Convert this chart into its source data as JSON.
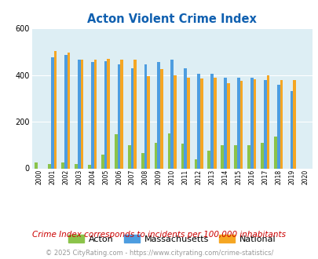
{
  "title": "Acton Violent Crime Index",
  "years": [
    2000,
    2001,
    2002,
    2003,
    2004,
    2005,
    2006,
    2007,
    2008,
    2009,
    2010,
    2011,
    2012,
    2013,
    2014,
    2015,
    2016,
    2017,
    2018,
    2019,
    2020
  ],
  "acton": [
    25,
    18,
    25,
    20,
    15,
    60,
    148,
    100,
    65,
    110,
    150,
    105,
    38,
    75,
    100,
    100,
    100,
    110,
    135,
    0,
    0
  ],
  "massachusetts": [
    0,
    478,
    488,
    468,
    455,
    458,
    445,
    430,
    445,
    455,
    465,
    430,
    405,
    405,
    390,
    390,
    390,
    378,
    358,
    330,
    0
  ],
  "national": [
    0,
    505,
    498,
    468,
    465,
    470,
    465,
    465,
    395,
    425,
    400,
    390,
    385,
    390,
    365,
    375,
    383,
    398,
    380,
    380,
    0
  ],
  "acton_color": "#8bc34a",
  "mass_color": "#4d9de0",
  "national_color": "#f5a623",
  "bg_color": "#ddeef4",
  "title_color": "#1060b0",
  "subtitle": "Crime Index corresponds to incidents per 100,000 inhabitants",
  "footer": "© 2025 CityRating.com - https://www.cityrating.com/crime-statistics/",
  "ylim": [
    0,
    600
  ],
  "yticks": [
    0,
    200,
    400,
    600
  ],
  "subtitle_color": "#cc0000",
  "footer_color": "#999999"
}
